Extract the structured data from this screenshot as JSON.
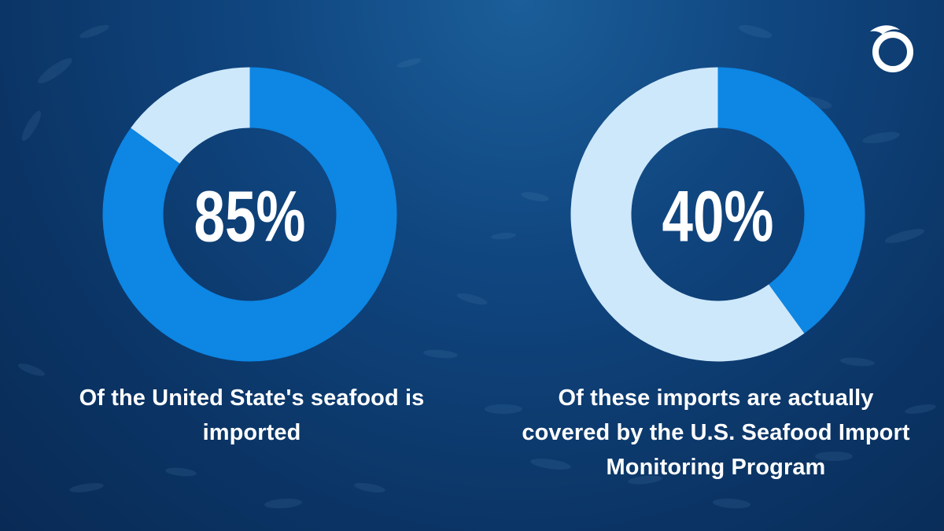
{
  "chart_data": [
    {
      "type": "pie",
      "variant": "donut",
      "center_label": "85%",
      "slices": [
        {
          "value": 85,
          "color": "#0d86e4"
        },
        {
          "value": 15,
          "color": "#cde8fb"
        }
      ],
      "caption": "Of the United State's seafood is imported"
    },
    {
      "type": "pie",
      "variant": "donut",
      "center_label": "40%",
      "slices": [
        {
          "value": 40,
          "color": "#0d86e4"
        },
        {
          "value": 60,
          "color": "#cde8fb"
        }
      ],
      "caption": "Of these imports are actually covered by the U.S. Seafood Import Monitoring Program"
    }
  ],
  "captions": {
    "left": "Of the United State's seafood is imported",
    "right": "Of these imports are actually covered by the U.S. Seafood Import Monitoring Program"
  },
  "logo": {
    "icon": "oceana-logo-icon",
    "color": "#ffffff"
  },
  "theme": {
    "background": "#0b3566",
    "accent": "#0d86e4",
    "remainder": "#cde8fb"
  }
}
